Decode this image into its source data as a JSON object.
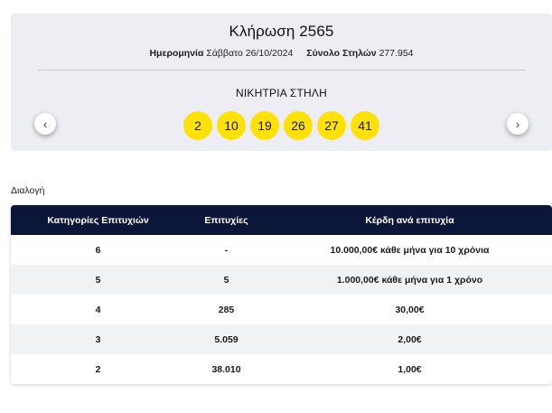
{
  "draw": {
    "title": "Κλήρωση 2565",
    "date_label": "Ημερομηνία",
    "date_value": "Σάββατο 26/10/2024",
    "columns_label": "Σύνολο Στηλών",
    "columns_value": "277.954",
    "winning_label": "ΝΙΚΗΤΡΙΑ ΣΤΗΛΗ",
    "numbers": [
      "2",
      "10",
      "19",
      "26",
      "27",
      "41"
    ],
    "prev_icon": "‹",
    "next_icon": "›"
  },
  "section": {
    "label": "Διαλογή"
  },
  "table": {
    "headers": [
      "Κατηγορίες Επιτυχιών",
      "Επιτυχίες",
      "Κέρδη ανά επιτυχία"
    ],
    "rows": [
      {
        "category": "6",
        "winners": "-",
        "prize": "10.000,00€ κάθε μήνα για 10 χρόνια"
      },
      {
        "category": "5",
        "winners": "5",
        "prize": "1.000,00€ κάθε μήνα για 1 χρόνο"
      },
      {
        "category": "4",
        "winners": "285",
        "prize": "30,00€"
      },
      {
        "category": "3",
        "winners": "5.059",
        "prize": "2,00€"
      },
      {
        "category": "2",
        "winners": "38.010",
        "prize": "1,00€"
      }
    ]
  },
  "colors": {
    "ball": "#ffe10a",
    "header_bg": "#0b1638",
    "card_bg": "#eceef4"
  }
}
